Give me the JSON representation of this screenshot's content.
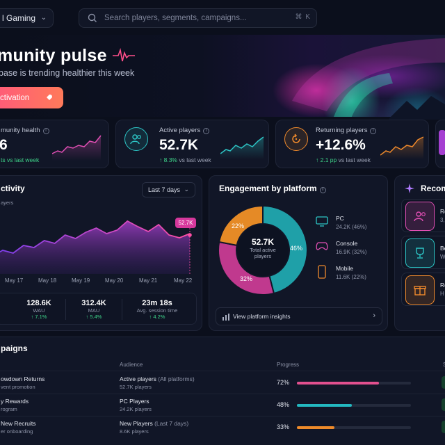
{
  "topbar": {
    "org": "l Gaming",
    "search_placeholder": "Search players, segments, campaigns...",
    "search_shortcut": "⌘ K"
  },
  "hero": {
    "title": "munity pulse",
    "subtitle": "base is trending healthier this week",
    "cta_label": "ctivation"
  },
  "kpis": [
    {
      "title": "munity health",
      "value": "6",
      "delta_up": "",
      "delta_rest": "ts vs last week",
      "color": "#e14fb4"
    },
    {
      "title": "Active players",
      "value": "52.7K",
      "delta_up": "↑ 8.3%",
      "delta_rest": "vs last week",
      "color": "#2dc6c6",
      "icon": "users-icon"
    },
    {
      "title": "Returning players",
      "value": "+12.6%",
      "delta_up": "↑ 2.1 pp",
      "delta_rest": "vs last week",
      "color": "#f08a2c",
      "icon": "return-icon"
    }
  ],
  "activity": {
    "title": "ctivity",
    "range": "Last 7 days",
    "series_label": "ayers",
    "tooltip": "52.7K",
    "x_labels": [
      "May 17",
      "May 18",
      "May 19",
      "May 20",
      "May 21",
      "May 22"
    ],
    "stats": [
      {
        "value": "128.6K",
        "label": "WAU",
        "delta": "↑ 7.1%"
      },
      {
        "value": "312.4K",
        "label": "MAU",
        "delta": "↑ 5.4%"
      },
      {
        "value": "23m 18s",
        "label": "Avg. session time",
        "delta": "↑ 4.2%"
      }
    ]
  },
  "engagement": {
    "title": "Engagement by platform",
    "total_value": "52.7K",
    "total_label_1": "Total active",
    "total_label_2": "players",
    "slices": [
      {
        "name": "PC",
        "value": "24.2K (46%)",
        "pct": 46,
        "color": "#1fa0a8",
        "label": "46%"
      },
      {
        "name": "Console",
        "value": "16.9K (32%)",
        "pct": 32,
        "color": "#c0398e",
        "label": "32%"
      },
      {
        "name": "Mobile",
        "value": "11.6K (22%)",
        "pct": 22,
        "color": "#e58a26",
        "label": "22%"
      }
    ],
    "link": "View platform insights"
  },
  "recommendations": {
    "title": "Recom",
    "items": [
      {
        "t": "Re",
        "s": "3,",
        "color": "#e14fb4",
        "icon": "users-icon"
      },
      {
        "t": "Be",
        "s": "W",
        "color": "#2dc6c6",
        "icon": "trophy-icon"
      },
      {
        "t": "Re",
        "s": "H",
        "color": "#f08a2c",
        "icon": "gift-icon"
      }
    ]
  },
  "campaigns": {
    "title": "paigns",
    "headers": {
      "audience": "Audience",
      "progress": "Progress",
      "extra": "S"
    },
    "rows": [
      {
        "name": "owdown Returns",
        "sub": "vent promotion",
        "aud_main": "Active players",
        "aud_extra": " (All platforms)",
        "aud_sub": "52.7K players",
        "pct": "72%",
        "progress": 0.72,
        "color": "#e2508f"
      },
      {
        "name": "y Rewards",
        "sub": "rogram",
        "aud_main": "PC Players",
        "aud_extra": "",
        "aud_sub": "24.2K players",
        "pct": "48%",
        "progress": 0.48,
        "color": "#23b8c0"
      },
      {
        "name": "New Recruits",
        "sub": "er onboarding",
        "aud_main": "New Players",
        "aud_extra": " (Last 7 days)",
        "aud_sub": "8.6K players",
        "pct": "33%",
        "progress": 0.33,
        "color": "#ee8a2a"
      }
    ]
  }
}
